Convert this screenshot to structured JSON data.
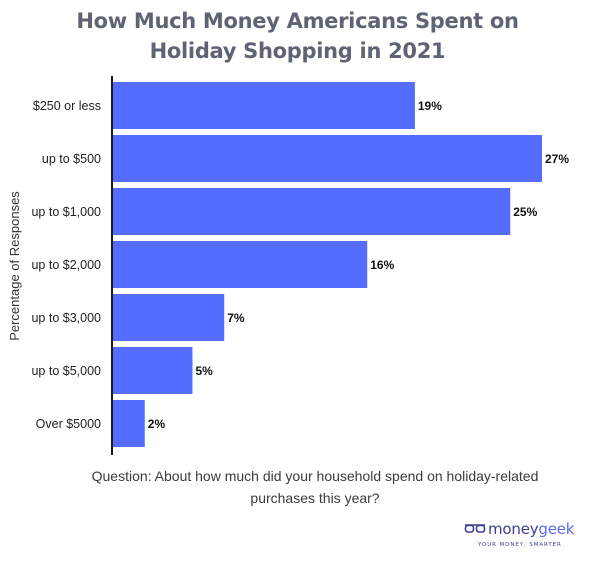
{
  "title": "How Much Money Americans Spent on Holiday Shopping in 2021",
  "footer": {
    "question": "Question: About how much did your household spend on holiday-related purchases this year?"
  },
  "logo": {
    "word_money": "money",
    "word_geek": "geek",
    "tagline": "YOUR MONEY, SMARTER",
    "icon": "glasses-icon"
  },
  "colors": {
    "bar": "#546cff",
    "title": "#5f6474",
    "axis": "#1a1a1a",
    "logo": "#3d3f92"
  },
  "chart_data": {
    "type": "bar",
    "orientation": "horizontal",
    "title": "How Much Money Americans Spent on Holiday Shopping in 2021",
    "ylabel": "Percentage of Responses",
    "xlabel": "",
    "categories": [
      "$250 or less",
      "up to $500",
      "up to $1,000",
      "up to $2,000",
      "up to $3,000",
      "up to $5,000",
      "Over $5000"
    ],
    "values": [
      19,
      27,
      25,
      16,
      7,
      5,
      2
    ],
    "value_labels": [
      "19%",
      "27%",
      "25%",
      "16%",
      "7%",
      "5%",
      "2%"
    ],
    "xlim": [
      0,
      27
    ],
    "grid": false,
    "legend": "none"
  }
}
